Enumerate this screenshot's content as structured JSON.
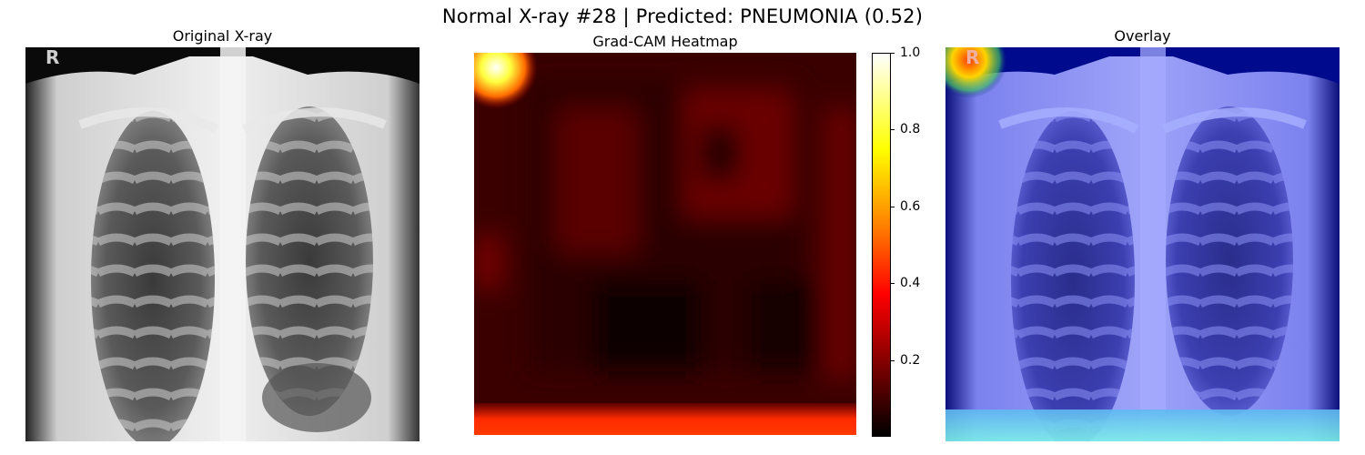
{
  "figure": {
    "suptitle": "Normal X-ray #28 | Predicted: PNEUMONIA (0.52)"
  },
  "panels": {
    "original": {
      "title": "Original X-ray",
      "marker": "R"
    },
    "heatmap": {
      "title": "Grad-CAM Heatmap"
    },
    "overlay": {
      "title": "Overlay",
      "marker": "R"
    }
  },
  "colorbar": {
    "colormap": "hot",
    "range": [
      0,
      1.0
    ],
    "ticks": [
      {
        "value": 1.0,
        "label": "1.0"
      },
      {
        "value": 0.8,
        "label": "0.8"
      },
      {
        "value": 0.6,
        "label": "0.6"
      },
      {
        "value": 0.4,
        "label": "0.4"
      },
      {
        "value": 0.2,
        "label": "0.2"
      }
    ]
  },
  "colors": {
    "heat_low": "#000000",
    "heat_mid": "#ff2000",
    "heat_high": "#ffffff",
    "overlay_base": "#000a8c"
  }
}
